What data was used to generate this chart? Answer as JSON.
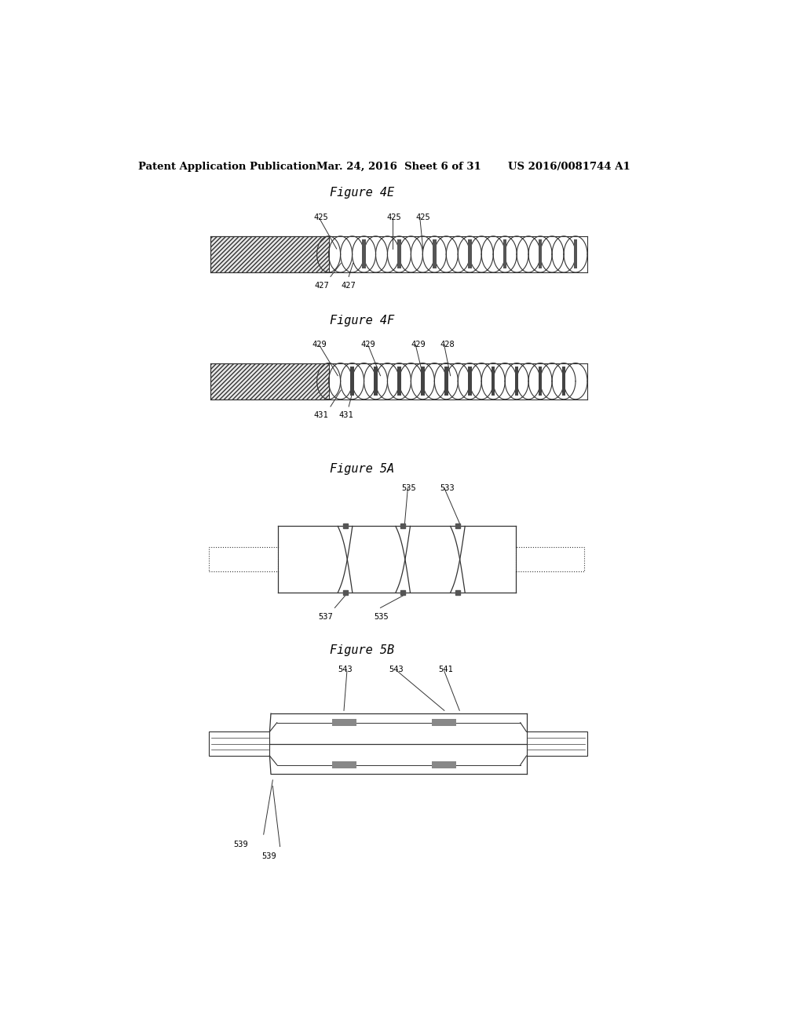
{
  "bg_color": "#ffffff",
  "header_left": "Patent Application Publication",
  "header_center": "Mar. 24, 2016  Sheet 6 of 31",
  "header_right": "US 2016/0081744 A1",
  "fig4e_title": "Figure 4E",
  "fig4f_title": "Figure 4F",
  "fig5a_title": "Figure 5A",
  "fig5b_title": "Figure 5B",
  "line_color": "#333333",
  "dark_fill": "#555555",
  "hatch_color": "#555555"
}
